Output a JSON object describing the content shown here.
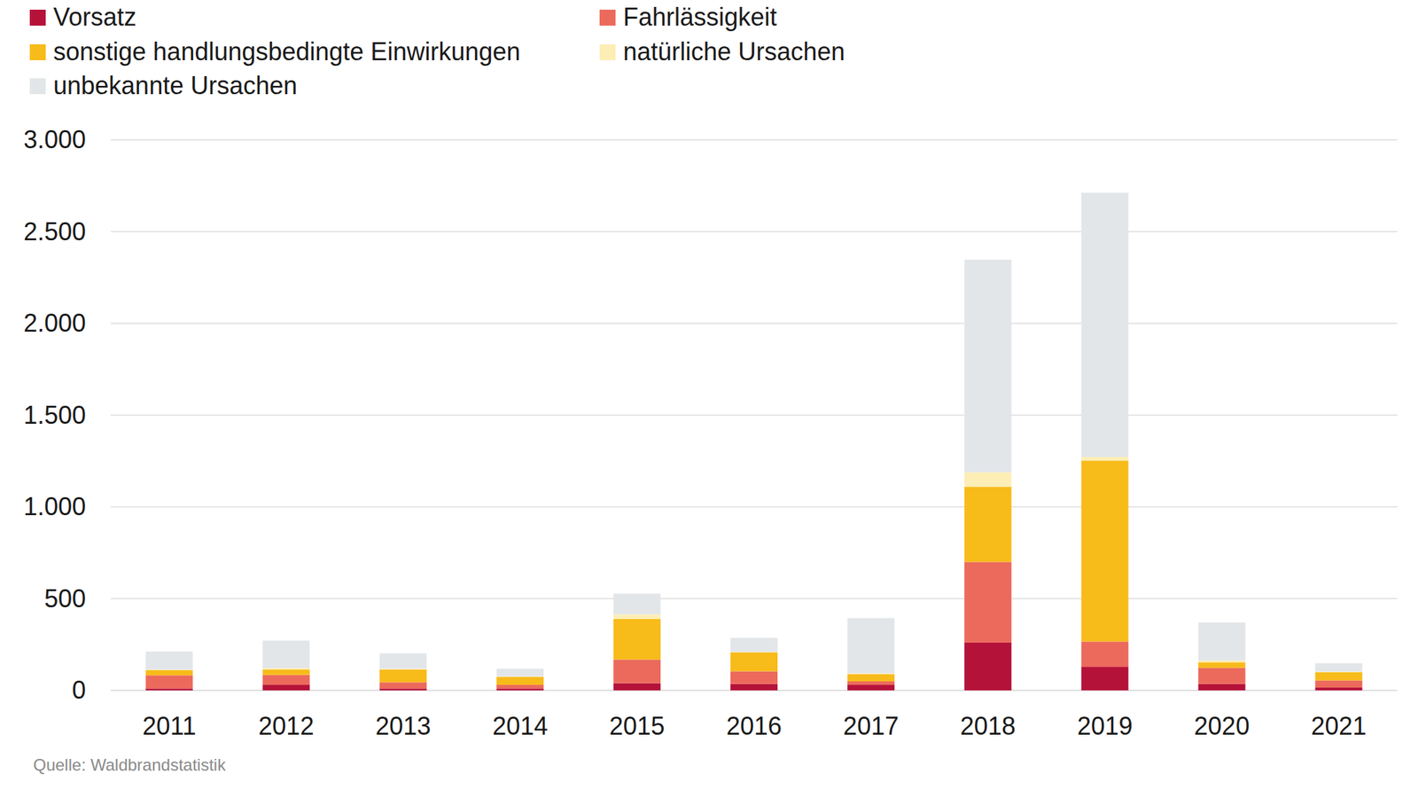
{
  "chart_data": {
    "type": "bar",
    "stacked": true,
    "grid": true,
    "legend": "top",
    "source": "Quelle: Waldbrandstatistik",
    "categories": [
      "2011",
      "2012",
      "2013",
      "2014",
      "2015",
      "2016",
      "2017",
      "2018",
      "2019",
      "2020",
      "2021"
    ],
    "series": [
      {
        "name": "Vorsatz",
        "color": "#b5123a",
        "values": [
          10,
          30,
          10,
          10,
          39,
          35,
          30,
          261,
          128,
          35,
          15
        ]
      },
      {
        "name": "Fahrlässigkeit",
        "color": "#ec6a5c",
        "values": [
          72,
          54,
          34,
          20,
          129,
          69,
          19,
          439,
          138,
          88,
          39
        ]
      },
      {
        "name": "sonstige handlungsbedingte Einwirkungen",
        "color": "#f7bb1a",
        "values": [
          28,
          29,
          69,
          44,
          221,
          103,
          40,
          409,
          986,
          30,
          45
        ]
      },
      {
        "name": "natürliche Ursachen",
        "color": "#fdeeb5",
        "values": [
          3,
          8,
          5,
          2,
          25,
          3,
          4,
          79,
          20,
          10,
          3
        ]
      },
      {
        "name": "unbekannte Ursachen",
        "color": "#e3e6e9",
        "values": [
          99,
          150,
          84,
          42,
          113,
          76,
          301,
          1159,
          1440,
          207,
          46
        ]
      }
    ],
    "ylim": [
      0,
      3000
    ],
    "yticks": [
      0,
      500,
      {
        "value": 1000,
        "label": "1.000"
      },
      {
        "value": 1500,
        "label": "1.500"
      },
      {
        "value": 2000,
        "label": "2.000"
      },
      {
        "value": 2500,
        "label": "2.500"
      },
      {
        "value": 3000,
        "label": "3.000"
      }
    ]
  }
}
